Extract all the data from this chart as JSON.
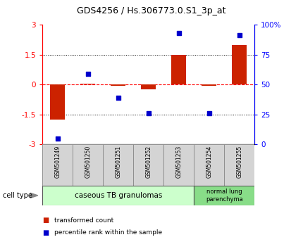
{
  "title": "GDS4256 / Hs.306773.0.S1_3p_at",
  "samples": [
    "GSM501249",
    "GSM501250",
    "GSM501251",
    "GSM501252",
    "GSM501253",
    "GSM501254",
    "GSM501255"
  ],
  "bar_values": [
    -1.75,
    0.05,
    -0.05,
    -0.25,
    1.5,
    -0.05,
    2.0
  ],
  "scatter_values": [
    -2.7,
    0.55,
    -0.65,
    -1.45,
    2.6,
    -1.45,
    2.5
  ],
  "ylim": [
    -3,
    3
  ],
  "y2lim": [
    0,
    100
  ],
  "yticks_left": [
    -3,
    -1.5,
    0,
    1.5,
    3
  ],
  "yticks_right": [
    0,
    25,
    50,
    75,
    100
  ],
  "bar_color": "#cc2200",
  "scatter_color": "#0000cc",
  "group1_label": "caseous TB granulomas",
  "group2_label": "normal lung\nparenchyma",
  "cell_type_label": "cell type",
  "legend_bar_label": "transformed count",
  "legend_scatter_label": "percentile rank within the sample",
  "background_color": "#ffffff",
  "plot_bg": "#ffffff",
  "group1_color": "#ccffcc",
  "group2_color": "#88dd88",
  "label_box_color": "#cccccc",
  "label_box_edge": "#888888"
}
